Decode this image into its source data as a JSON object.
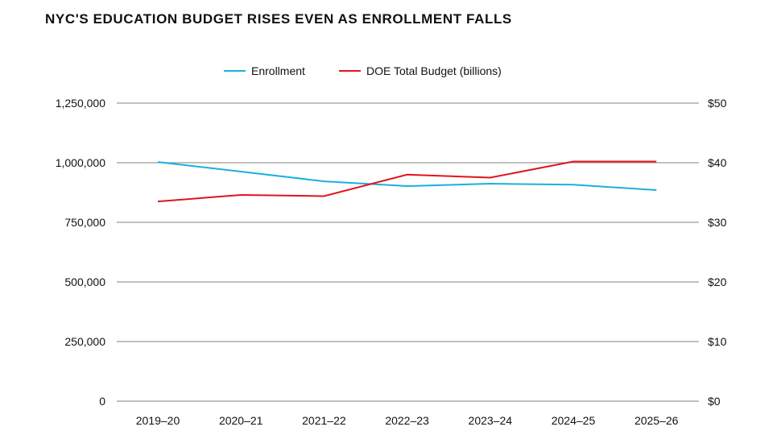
{
  "chart_data": {
    "type": "line",
    "title": "NYC'S EDUCATION BUDGET RISES EVEN AS ENROLLMENT FALLS",
    "categories": [
      "2019–20",
      "2020–21",
      "2021–22",
      "2022–23",
      "2023–24",
      "2024–25",
      "2025–26"
    ],
    "left_axis": {
      "ylim": [
        0,
        1250000
      ],
      "ticks": [
        "0",
        "250,000",
        "500,000",
        "750,000",
        "1,000,000",
        "1,250,000"
      ]
    },
    "right_axis": {
      "ylim": [
        0,
        50
      ],
      "ticks": [
        "$0",
        "$10",
        "$20",
        "$30",
        "$40",
        "$50"
      ]
    },
    "grid": true,
    "legend_placement": "top",
    "series": [
      {
        "name": "Enrollment",
        "axis": "left",
        "color": "#1ab0e0",
        "values": [
          1003000,
          963000,
          922000,
          902000,
          912000,
          908000,
          885000
        ]
      },
      {
        "name": "DOE Total Budget (billions)",
        "axis": "right",
        "color": "#e0141e",
        "values": [
          33.5,
          34.6,
          34.4,
          38.0,
          37.5,
          40.2,
          40.2
        ]
      }
    ]
  }
}
